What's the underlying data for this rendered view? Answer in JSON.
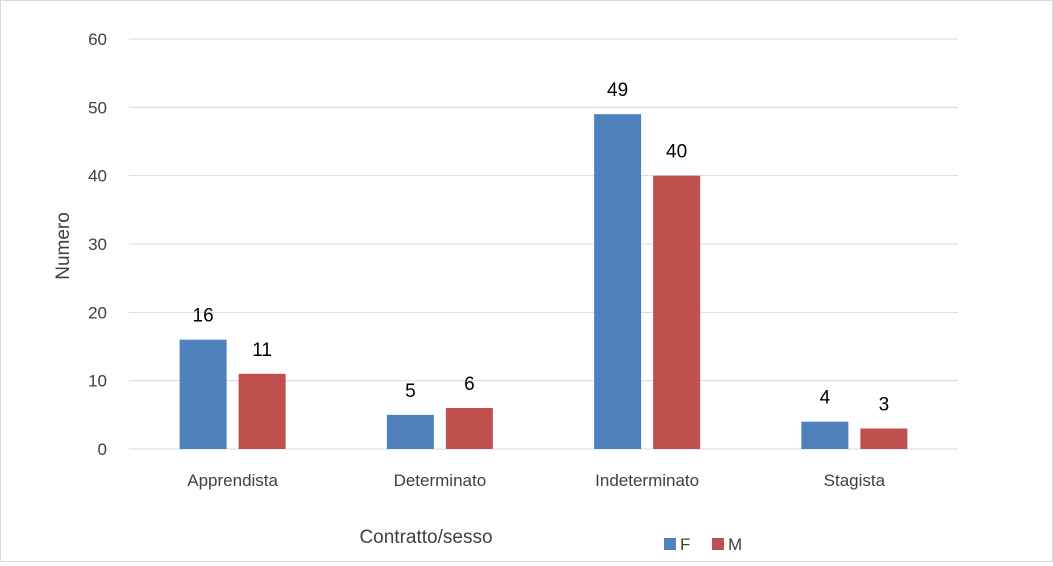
{
  "chart_data": {
    "type": "bar",
    "title": "",
    "xlabel": "Contratto/sesso",
    "ylabel": "Numero",
    "ylim": [
      0,
      60
    ],
    "yticks": [
      0,
      10,
      20,
      30,
      40,
      50,
      60
    ],
    "grid": true,
    "legend_position": "bottom",
    "categories": [
      "Apprendista",
      "Determinato",
      "Indeterminato",
      "Stagista"
    ],
    "series": [
      {
        "name": "F",
        "color": "#4f81bd",
        "values": [
          16,
          5,
          49,
          4
        ]
      },
      {
        "name": "M",
        "color": "#c0504d",
        "values": [
          11,
          6,
          40,
          3
        ]
      }
    ]
  }
}
